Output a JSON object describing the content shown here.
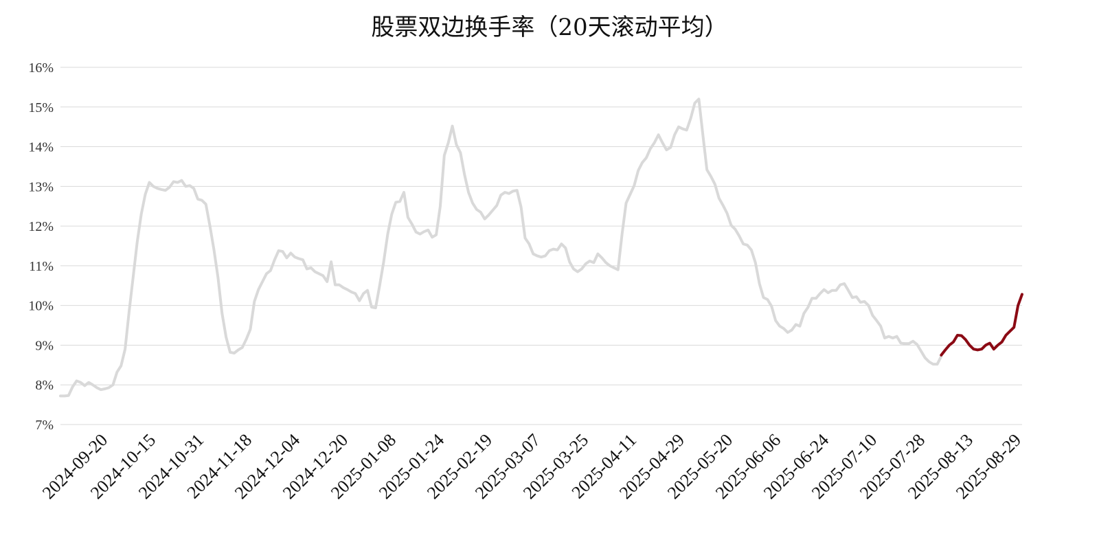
{
  "chart_data": {
    "type": "line",
    "title": "股票双边换手率（20天滚动平均）",
    "xlabel": "",
    "ylabel": "",
    "ylim": [
      7,
      16
    ],
    "y_unit": "%",
    "y_ticks": [
      7,
      8,
      9,
      10,
      11,
      12,
      13,
      14,
      15,
      16
    ],
    "y_tick_labels": [
      "7%",
      "8%",
      "9%",
      "10%",
      "11%",
      "12%",
      "13%",
      "14%",
      "15%",
      "16%"
    ],
    "x_tick_labels": [
      "2024-09-20",
      "2024-10-15",
      "2024-10-31",
      "2024-11-18",
      "2024-12-04",
      "2024-12-20",
      "2025-01-08",
      "2025-01-24",
      "2025-02-19",
      "2025-03-07",
      "2025-03-25",
      "2025-04-11",
      "2025-04-29",
      "2025-05-20",
      "2025-06-06",
      "2025-06-24",
      "2025-07-10",
      "2025-07-28",
      "2025-08-13",
      "2025-08-29"
    ],
    "grid": true,
    "legend": "none",
    "series": [
      {
        "color": "#d9d9d9",
        "values": [
          7.72,
          7.72,
          7.73,
          7.95,
          8.1,
          8.06,
          7.98,
          8.06,
          8.0,
          7.93,
          7.88,
          7.9,
          7.93,
          8.0,
          8.32,
          8.48,
          8.9,
          9.85,
          10.72,
          11.6,
          12.3,
          12.8,
          13.1,
          13.0,
          12.95,
          12.92,
          12.9,
          12.98,
          13.12,
          13.1,
          13.15,
          13.0,
          13.02,
          12.95,
          12.68,
          12.65,
          12.55,
          12.0,
          11.4,
          10.7,
          9.8,
          9.2,
          8.82,
          8.8,
          8.88,
          8.94,
          9.15,
          9.4,
          10.1,
          10.4,
          10.6,
          10.8,
          10.88,
          11.15,
          11.38,
          11.36,
          11.2,
          11.32,
          11.22,
          11.18,
          11.15,
          10.92,
          10.95,
          10.85,
          10.8,
          10.75,
          10.6,
          11.1,
          10.52,
          10.52,
          10.45,
          10.4,
          10.34,
          10.3,
          10.12,
          10.3,
          10.38,
          9.96,
          9.94,
          10.5,
          11.1,
          11.8,
          12.3,
          12.6,
          12.62,
          12.85,
          12.22,
          12.05,
          11.85,
          11.8,
          11.86,
          11.9,
          11.72,
          11.78,
          12.5,
          13.78,
          14.1,
          14.52,
          14.05,
          13.85,
          13.3,
          12.85,
          12.58,
          12.42,
          12.35,
          12.18,
          12.28,
          12.4,
          12.52,
          12.78,
          12.85,
          12.82,
          12.88,
          12.9,
          12.48,
          11.7,
          11.55,
          11.3,
          11.25,
          11.22,
          11.25,
          11.38,
          11.42,
          11.4,
          11.55,
          11.45,
          11.1,
          10.92,
          10.85,
          10.92,
          11.05,
          11.12,
          11.08,
          11.3,
          11.2,
          11.08,
          11.0,
          10.95,
          10.9,
          11.8,
          12.58,
          12.8,
          13.02,
          13.4,
          13.6,
          13.72,
          13.95,
          14.1,
          14.3,
          14.1,
          13.92,
          13.98,
          14.3,
          14.5,
          14.45,
          14.42,
          14.72,
          15.1,
          15.2,
          14.3,
          13.42,
          13.25,
          13.05,
          12.7,
          12.52,
          12.32,
          12.02,
          11.92,
          11.75,
          11.55,
          11.52,
          11.4,
          11.08,
          10.55,
          10.2,
          10.15,
          9.98,
          9.62,
          9.48,
          9.42,
          9.32,
          9.38,
          9.52,
          9.48,
          9.8,
          9.95,
          10.18,
          10.18,
          10.3,
          10.4,
          10.32,
          10.38,
          10.38,
          10.52,
          10.55,
          10.38,
          10.2,
          10.22,
          10.08,
          10.1,
          10.0,
          9.75,
          9.62,
          9.48,
          9.18,
          9.22,
          9.18,
          9.22,
          9.05,
          9.04,
          9.04,
          9.1,
          9.02,
          8.85,
          8.68,
          8.58,
          8.52,
          8.52,
          8.72
        ]
      },
      {
        "color": "#8b0a14",
        "values": [
          8.75,
          8.88,
          9.0,
          9.08,
          9.25,
          9.24,
          9.14,
          9.0,
          8.9,
          8.88,
          8.9,
          9.0,
          9.05,
          8.9,
          9.0,
          9.08,
          9.25,
          9.35,
          9.45,
          10.0,
          10.28
        ]
      }
    ]
  }
}
